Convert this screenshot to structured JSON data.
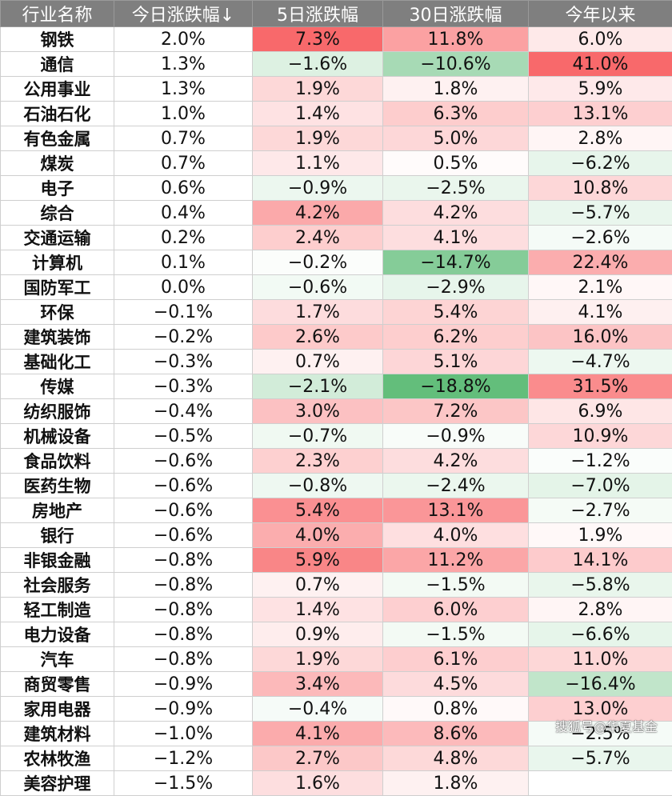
{
  "chart_data": {
    "type": "table",
    "columns": [
      "行业名称",
      "今日涨跌幅↓",
      "5日涨跌幅",
      "30日涨跌幅",
      "今年以来"
    ],
    "rows": [
      [
        "钢铁",
        "2.0%",
        "7.3%",
        "11.8%",
        "6.0%"
      ],
      [
        "通信",
        "1.3%",
        "−1.6%",
        "−10.6%",
        "41.0%"
      ],
      [
        "公用事业",
        "1.3%",
        "1.9%",
        "1.8%",
        "5.9%"
      ],
      [
        "石油石化",
        "1.0%",
        "1.4%",
        "6.3%",
        "13.1%"
      ],
      [
        "有色金属",
        "0.7%",
        "1.9%",
        "5.0%",
        "2.8%"
      ],
      [
        "煤炭",
        "0.7%",
        "1.1%",
        "0.5%",
        "−6.2%"
      ],
      [
        "电子",
        "0.6%",
        "−0.9%",
        "−2.5%",
        "10.8%"
      ],
      [
        "综合",
        "0.4%",
        "4.2%",
        "4.2%",
        "−5.7%"
      ],
      [
        "交通运输",
        "0.2%",
        "2.4%",
        "4.1%",
        "−2.6%"
      ],
      [
        "计算机",
        "0.1%",
        "−0.2%",
        "−14.7%",
        "22.4%"
      ],
      [
        "国防军工",
        "0.0%",
        "−0.6%",
        "−2.9%",
        "2.1%"
      ],
      [
        "环保",
        "−0.1%",
        "1.7%",
        "5.4%",
        "4.1%"
      ],
      [
        "建筑装饰",
        "−0.2%",
        "2.6%",
        "6.2%",
        "16.0%"
      ],
      [
        "基础化工",
        "−0.3%",
        "0.7%",
        "5.1%",
        "−4.7%"
      ],
      [
        "传媒",
        "−0.3%",
        "−2.1%",
        "−18.8%",
        "31.5%"
      ],
      [
        "纺织服饰",
        "−0.4%",
        "3.0%",
        "7.2%",
        "6.9%"
      ],
      [
        "机械设备",
        "−0.5%",
        "−0.7%",
        "−0.9%",
        "10.9%"
      ],
      [
        "食品饮料",
        "−0.6%",
        "2.3%",
        "4.2%",
        "−1.2%"
      ],
      [
        "医药生物",
        "−0.6%",
        "−0.8%",
        "−2.4%",
        "−7.0%"
      ],
      [
        "房地产",
        "−0.6%",
        "5.4%",
        "13.1%",
        "−2.7%"
      ],
      [
        "银行",
        "−0.6%",
        "4.0%",
        "4.0%",
        "1.9%"
      ],
      [
        "非银金融",
        "−0.8%",
        "5.9%",
        "11.2%",
        "14.1%"
      ],
      [
        "社会服务",
        "−0.8%",
        "0.7%",
        "−1.5%",
        "−5.8%"
      ],
      [
        "轻工制造",
        "−0.8%",
        "1.4%",
        "6.0%",
        "2.8%"
      ],
      [
        "电力设备",
        "−0.8%",
        "0.9%",
        "−1.5%",
        "−6.6%"
      ],
      [
        "汽车",
        "−0.8%",
        "1.9%",
        "6.1%",
        "11.0%"
      ],
      [
        "商贸零售",
        "−0.9%",
        "3.4%",
        "4.5%",
        "−16.4%"
      ],
      [
        "家用电器",
        "−0.9%",
        "−0.4%",
        "0.8%",
        "13.0%"
      ],
      [
        "建筑材料",
        "−1.0%",
        "4.1%",
        "8.6%",
        "−2.5%"
      ],
      [
        "农林牧渔",
        "−1.2%",
        "2.7%",
        "4.8%",
        "−5.7%"
      ],
      [
        "美容护理",
        "−1.5%",
        "1.6%",
        "1.8%",
        ""
      ]
    ]
  },
  "colors": {
    "header_bg": "#7f7f7f",
    "positive": "#f8696b",
    "negative": "#63be7b",
    "neutral": "#ffffff"
  },
  "watermark": "搜狐号@华夏基金"
}
